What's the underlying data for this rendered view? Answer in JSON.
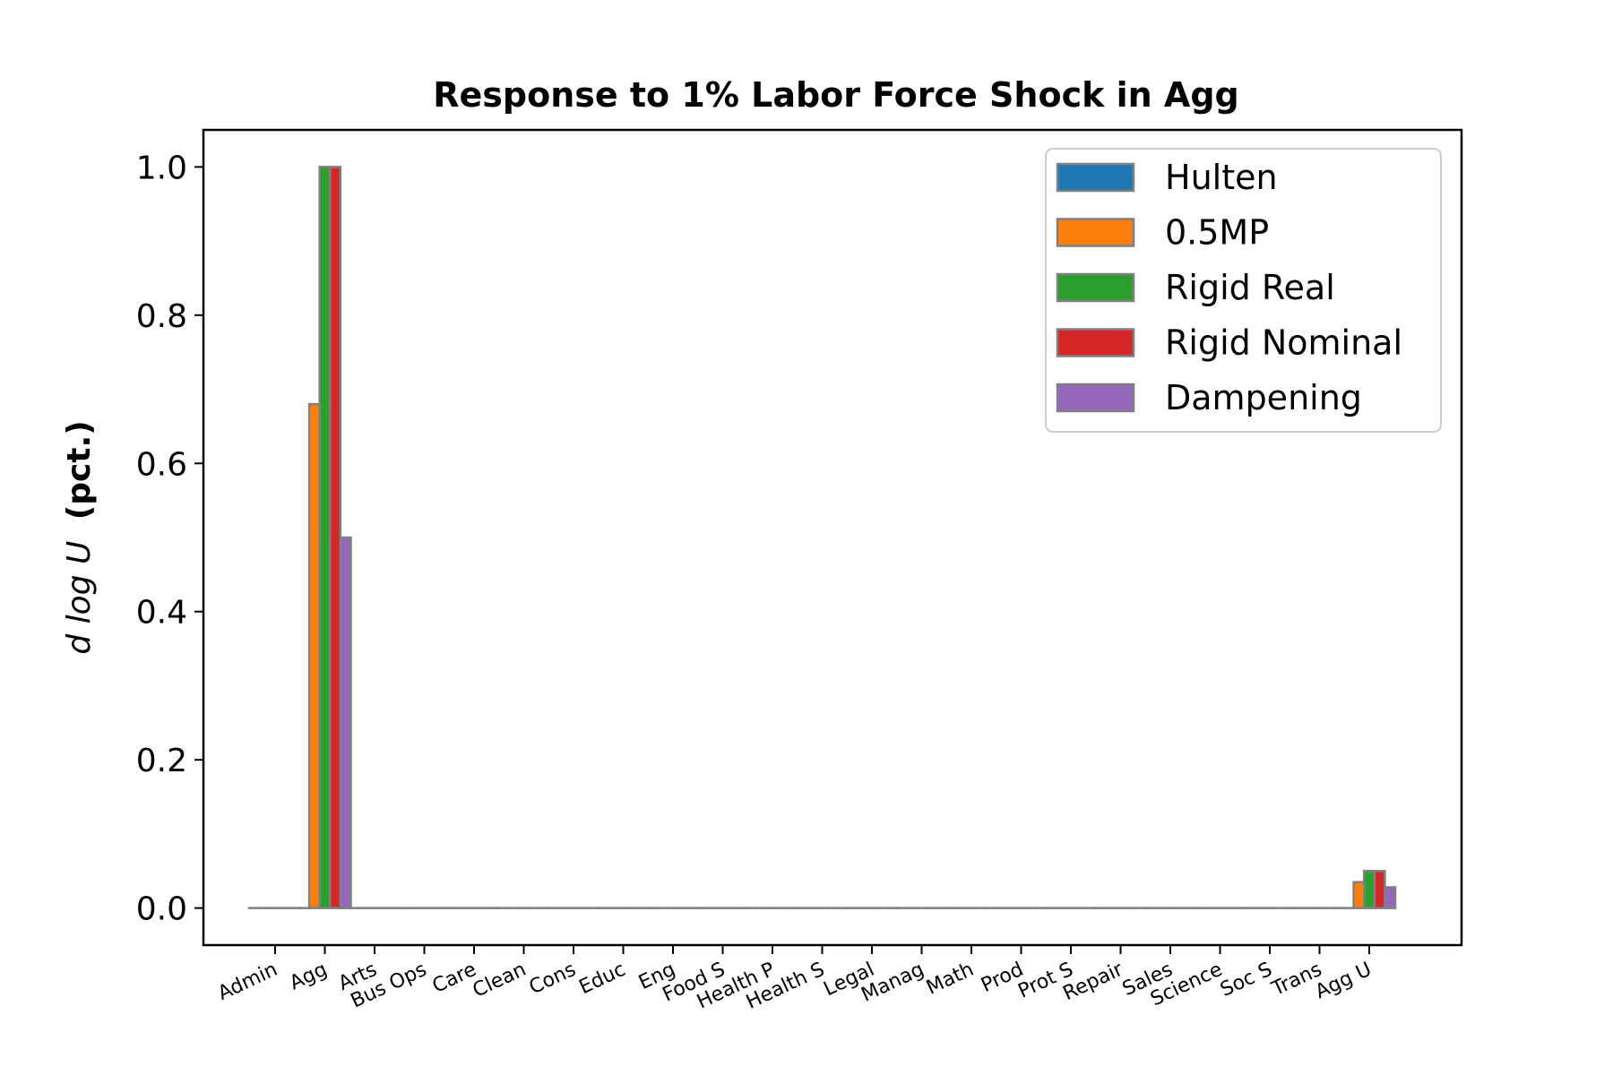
{
  "chart_data": {
    "type": "bar",
    "title": "Response to 1% Labor Force Shock in Agg",
    "ylabel": {
      "math": "d log U",
      "unit": "(pct.)"
    },
    "xlabel": "",
    "ylim": [
      -0.05,
      1.05
    ],
    "yticks": [
      "0.0",
      "0.2",
      "0.4",
      "0.6",
      "0.8",
      "1.0"
    ],
    "categories": [
      "Admin",
      "Agg",
      "Arts",
      "Bus Ops",
      "Care",
      "Clean",
      "Cons",
      "Educ",
      "Eng",
      "Food S",
      "Health P",
      "Health S",
      "Legal",
      "Manag",
      "Math",
      "Prod",
      "Prot S",
      "Repair",
      "Sales",
      "Science",
      "Soc S",
      "Trans",
      "Agg U"
    ],
    "series": [
      {
        "name": "Hulten",
        "color": "#1f77b4",
        "values": [
          0,
          0,
          0,
          0,
          0,
          0,
          0,
          0,
          0,
          0,
          0,
          0,
          0,
          0,
          0,
          0,
          0,
          0,
          0,
          0,
          0,
          0,
          0
        ]
      },
      {
        "name": "0.5MP",
        "color": "#ff7f0e",
        "values": [
          0,
          0.68,
          0,
          0,
          0,
          0,
          0,
          0,
          0,
          0,
          0,
          0,
          0,
          0,
          0,
          0,
          0,
          0,
          0,
          0,
          0,
          0,
          0.035
        ]
      },
      {
        "name": "Rigid Real",
        "color": "#2ca02c",
        "values": [
          0,
          1.0,
          0,
          0,
          0,
          0,
          0,
          0,
          0,
          0,
          0,
          0,
          0,
          0,
          0,
          0,
          0,
          0,
          0,
          0,
          0,
          0,
          0.05
        ]
      },
      {
        "name": "Rigid Nominal",
        "color": "#d62728",
        "values": [
          0,
          1.0,
          0,
          0,
          0,
          0,
          0,
          0,
          0,
          0,
          0,
          0,
          0,
          0,
          0,
          0,
          0,
          0,
          0,
          0,
          0,
          0,
          0.05
        ]
      },
      {
        "name": "Dampening",
        "color": "#9467bd",
        "values": [
          0,
          0.5,
          0,
          0,
          0,
          0,
          0,
          0,
          0,
          0,
          0,
          0,
          0,
          0,
          0,
          0,
          0,
          0,
          0,
          0,
          0,
          0,
          0.028
        ]
      }
    ],
    "bar_edge_color": "#808080",
    "grid": false,
    "legend_position": "top-right"
  }
}
